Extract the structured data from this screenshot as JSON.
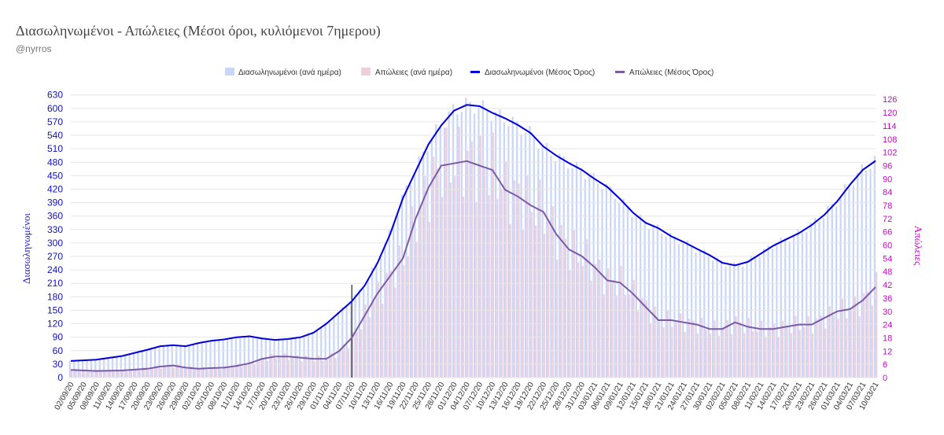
{
  "chart_data": {
    "type": "bar+line",
    "title": "Διασωληνωμένοι - Απώλειες (Μέσοι όροι, κυλιόμενοι 7ημερου)",
    "subtitle": "@nyrros",
    "start_date": "2020-09-02",
    "end_date": "2021-03-10",
    "x_tick_labels": [
      "02/09/20",
      "05/09/20",
      "08/09/20",
      "11/09/20",
      "14/09/20",
      "17/09/20",
      "20/09/20",
      "23/09/20",
      "26/09/20",
      "29/09/20",
      "02/10/20",
      "05/10/20",
      "08/10/20",
      "11/10/20",
      "14/10/20",
      "17/10/20",
      "20/10/20",
      "23/10/20",
      "26/10/20",
      "29/10/20",
      "01/11/20",
      "04/11/20",
      "07/11/20",
      "10/11/20",
      "13/11/20",
      "16/11/20",
      "19/11/20",
      "22/11/20",
      "25/11/20",
      "28/11/20",
      "01/12/20",
      "04/12/20",
      "07/12/20",
      "10/12/20",
      "13/12/20",
      "16/12/20",
      "19/12/20",
      "22/12/20",
      "25/12/20",
      "28/12/20",
      "31/12/20",
      "03/01/21",
      "06/01/21",
      "09/01/21",
      "12/01/21",
      "15/01/21",
      "18/01/21",
      "21/01/21",
      "24/01/21",
      "27/01/21",
      "30/01/21",
      "02/02/21",
      "05/02/21",
      "08/02/21",
      "11/02/21",
      "14/02/21",
      "17/02/21",
      "20/02/21",
      "23/02/21",
      "26/02/21",
      "01/03/21",
      "04/03/21",
      "07/03/21",
      "10/03/21"
    ],
    "y_left": {
      "label": "Διασωληνωμένοι",
      "ticks": [
        0,
        30,
        60,
        90,
        120,
        150,
        180,
        210,
        240,
        270,
        300,
        330,
        360,
        390,
        420,
        450,
        480,
        510,
        540,
        570,
        600,
        630
      ],
      "ylim": [
        0,
        640
      ]
    },
    "y_right": {
      "label": "Απώλειες",
      "ticks": [
        0,
        6,
        12,
        18,
        24,
        30,
        36,
        42,
        48,
        54,
        60,
        66,
        72,
        78,
        84,
        90,
        96,
        102,
        108,
        114,
        120,
        126
      ],
      "ylim": [
        0,
        130
      ]
    },
    "vertical_marker_date": "2020-11-07",
    "legend": [
      "Διασωληνωμένοι (ανά ημέρα)",
      "Απώλειες (ανά ημέρα)",
      "Διασωληνωμένοι (Μέσος Όρος)",
      "Απώλειες (Μέσος Όρος)"
    ],
    "series": [
      {
        "name": "Διασωληνωμένοι (Μέσος Όρος)",
        "axis": "left",
        "points": [
          [
            "2020-09-02",
            37
          ],
          [
            "2020-09-08",
            40
          ],
          [
            "2020-09-14",
            48
          ],
          [
            "2020-09-20",
            62
          ],
          [
            "2020-09-23",
            70
          ],
          [
            "2020-09-26",
            72
          ],
          [
            "2020-09-29",
            70
          ],
          [
            "2020-10-02",
            77
          ],
          [
            "2020-10-05",
            82
          ],
          [
            "2020-10-08",
            85
          ],
          [
            "2020-10-11",
            90
          ],
          [
            "2020-10-14",
            92
          ],
          [
            "2020-10-17",
            87
          ],
          [
            "2020-10-20",
            84
          ],
          [
            "2020-10-23",
            86
          ],
          [
            "2020-10-26",
            90
          ],
          [
            "2020-10-29",
            100
          ],
          [
            "2020-11-01",
            120
          ],
          [
            "2020-11-04",
            145
          ],
          [
            "2020-11-07",
            170
          ],
          [
            "2020-11-10",
            205
          ],
          [
            "2020-11-13",
            255
          ],
          [
            "2020-11-16",
            320
          ],
          [
            "2020-11-19",
            400
          ],
          [
            "2020-11-22",
            460
          ],
          [
            "2020-11-25",
            520
          ],
          [
            "2020-11-28",
            562
          ],
          [
            "2020-12-01",
            595
          ],
          [
            "2020-12-04",
            608
          ],
          [
            "2020-12-07",
            605
          ],
          [
            "2020-12-10",
            590
          ],
          [
            "2020-12-13",
            578
          ],
          [
            "2020-12-16",
            563
          ],
          [
            "2020-12-19",
            545
          ],
          [
            "2020-12-22",
            515
          ],
          [
            "2020-12-25",
            495
          ],
          [
            "2020-12-28",
            478
          ],
          [
            "2020-12-31",
            463
          ],
          [
            "2021-01-03",
            443
          ],
          [
            "2021-01-06",
            425
          ],
          [
            "2021-01-09",
            398
          ],
          [
            "2021-01-12",
            368
          ],
          [
            "2021-01-15",
            345
          ],
          [
            "2021-01-18",
            333
          ],
          [
            "2021-01-21",
            315
          ],
          [
            "2021-01-24",
            302
          ],
          [
            "2021-01-27",
            287
          ],
          [
            "2021-01-30",
            273
          ],
          [
            "2021-02-02",
            256
          ],
          [
            "2021-02-05",
            250
          ],
          [
            "2021-02-08",
            258
          ],
          [
            "2021-02-11",
            276
          ],
          [
            "2021-02-14",
            294
          ],
          [
            "2021-02-17",
            308
          ],
          [
            "2021-02-20",
            322
          ],
          [
            "2021-02-23",
            340
          ],
          [
            "2021-02-26",
            363
          ],
          [
            "2021-03-01",
            393
          ],
          [
            "2021-03-04",
            430
          ],
          [
            "2021-03-07",
            463
          ],
          [
            "2021-03-10",
            483
          ]
        ]
      },
      {
        "name": "Απώλειες (Μέσος Όρος)",
        "axis": "right",
        "points": [
          [
            "2020-09-02",
            3.5
          ],
          [
            "2020-09-08",
            3
          ],
          [
            "2020-09-14",
            3.2
          ],
          [
            "2020-09-20",
            4
          ],
          [
            "2020-09-23",
            5
          ],
          [
            "2020-09-26",
            5.5
          ],
          [
            "2020-09-29",
            4.5
          ],
          [
            "2020-10-02",
            4
          ],
          [
            "2020-10-05",
            4.3
          ],
          [
            "2020-10-08",
            4.5
          ],
          [
            "2020-10-11",
            5.3
          ],
          [
            "2020-10-14",
            6.5
          ],
          [
            "2020-10-17",
            8.5
          ],
          [
            "2020-10-20",
            9.5
          ],
          [
            "2020-10-23",
            9.5
          ],
          [
            "2020-10-26",
            9
          ],
          [
            "2020-10-29",
            8.5
          ],
          [
            "2020-11-01",
            8.5
          ],
          [
            "2020-11-04",
            12
          ],
          [
            "2020-11-07",
            18
          ],
          [
            "2020-11-10",
            28
          ],
          [
            "2020-11-13",
            38
          ],
          [
            "2020-11-16",
            46
          ],
          [
            "2020-11-19",
            54
          ],
          [
            "2020-11-22",
            72
          ],
          [
            "2020-11-25",
            86
          ],
          [
            "2020-11-28",
            96
          ],
          [
            "2020-12-01",
            97
          ],
          [
            "2020-12-04",
            98
          ],
          [
            "2020-12-07",
            96
          ],
          [
            "2020-12-10",
            94
          ],
          [
            "2020-12-13",
            85
          ],
          [
            "2020-12-16",
            82
          ],
          [
            "2020-12-19",
            78
          ],
          [
            "2020-12-22",
            75
          ],
          [
            "2020-12-25",
            65
          ],
          [
            "2020-12-28",
            58
          ],
          [
            "2020-12-31",
            55
          ],
          [
            "2021-01-03",
            50
          ],
          [
            "2021-01-06",
            44
          ],
          [
            "2021-01-09",
            43
          ],
          [
            "2021-01-12",
            38
          ],
          [
            "2021-01-15",
            32
          ],
          [
            "2021-01-18",
            26
          ],
          [
            "2021-01-21",
            26
          ],
          [
            "2021-01-24",
            25
          ],
          [
            "2021-01-27",
            24
          ],
          [
            "2021-01-30",
            22
          ],
          [
            "2021-02-02",
            22
          ],
          [
            "2021-02-05",
            25
          ],
          [
            "2021-02-08",
            23
          ],
          [
            "2021-02-11",
            22
          ],
          [
            "2021-02-14",
            22
          ],
          [
            "2021-02-17",
            23
          ],
          [
            "2021-02-20",
            24
          ],
          [
            "2021-02-23",
            24
          ],
          [
            "2021-02-26",
            27
          ],
          [
            "2021-03-01",
            30
          ],
          [
            "2021-03-04",
            31
          ],
          [
            "2021-03-07",
            35
          ],
          [
            "2021-03-10",
            41
          ]
        ]
      }
    ]
  }
}
